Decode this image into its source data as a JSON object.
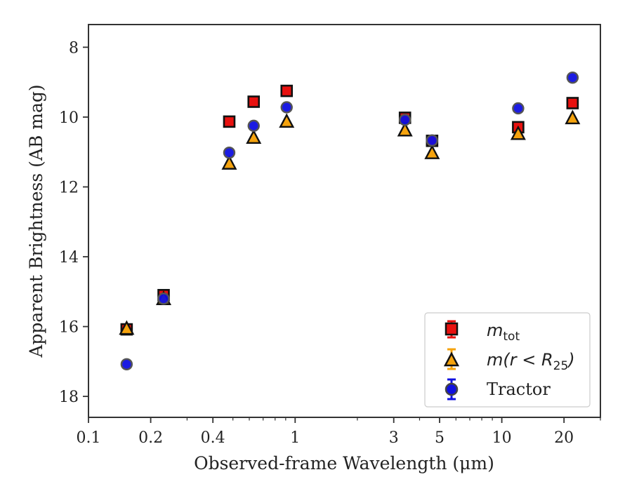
{
  "chart_data": {
    "type": "scatter",
    "xlabel": "Observed-frame Wavelength (μm)",
    "ylabel": "Apparent Brightness (AB mag)",
    "xscale": "log",
    "xlim": [
      0.1,
      30
    ],
    "ylim": [
      18.6,
      7.35
    ],
    "y_inverted": true,
    "xticks": [
      {
        "value": 0.1,
        "label": "0.1"
      },
      {
        "value": 0.2,
        "label": "0.2"
      },
      {
        "value": 0.4,
        "label": "0.4"
      },
      {
        "value": 1,
        "label": "1"
      },
      {
        "value": 3,
        "label": "3"
      },
      {
        "value": 5,
        "label": "5"
      },
      {
        "value": 10,
        "label": "10"
      },
      {
        "value": 20,
        "label": "20"
      }
    ],
    "yticks": [
      {
        "value": 8,
        "label": "8"
      },
      {
        "value": 10,
        "label": "10"
      },
      {
        "value": 12,
        "label": "12"
      },
      {
        "value": 14,
        "label": "14"
      },
      {
        "value": 16,
        "label": "16"
      },
      {
        "value": 18,
        "label": "18"
      }
    ],
    "legend_position": "lower-right",
    "series": [
      {
        "name": "m_tot",
        "marker": "square",
        "color": "#e8110f",
        "x": [
          0.153,
          0.231,
          0.48,
          0.63,
          0.91,
          3.4,
          4.6,
          12.0,
          22.0
        ],
        "y": [
          16.08,
          15.1,
          10.13,
          9.56,
          9.25,
          10.02,
          10.68,
          10.29,
          9.6
        ]
      },
      {
        "name": "m(r < R25)",
        "marker": "triangle",
        "color": "#f5a30e",
        "x": [
          0.153,
          0.231,
          0.48,
          0.63,
          0.91,
          3.4,
          4.6,
          12.0,
          22.0
        ],
        "y": [
          16.05,
          15.2,
          11.32,
          10.58,
          10.12,
          10.37,
          11.02,
          10.47,
          10.02
        ]
      },
      {
        "name": "Tractor",
        "marker": "circle",
        "color": "#1010e0",
        "x": [
          0.153,
          0.231,
          0.48,
          0.63,
          0.91,
          3.4,
          4.6,
          12.0,
          22.0
        ],
        "y": [
          17.08,
          15.2,
          11.02,
          10.25,
          9.72,
          10.08,
          10.67,
          9.75,
          8.87
        ]
      }
    ]
  },
  "legend": {
    "mtot_base": "m",
    "mtot_sub": "tot",
    "mr_prefix": "m(r < R",
    "mr_sub": "25",
    "mr_suffix": ")",
    "tractor": "Tractor"
  }
}
